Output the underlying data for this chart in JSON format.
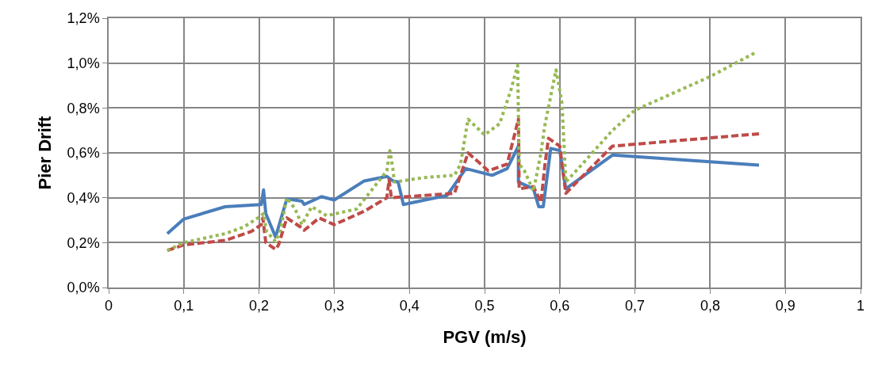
{
  "chart_data": {
    "type": "line",
    "xlabel": "PGV (m/s)",
    "ylabel": "Pier Drift",
    "xlim": [
      0,
      1
    ],
    "ylim": [
      0,
      1.2
    ],
    "xticks": [
      0,
      {
        "value": 0.1,
        "label": "0,1"
      },
      {
        "value": 0.2,
        "label": "0,2"
      },
      {
        "value": 0.3,
        "label": "0,3"
      },
      {
        "value": 0.4,
        "label": "0,4"
      },
      {
        "value": 0.5,
        "label": "0,5"
      },
      {
        "value": 0.6,
        "label": "0,6"
      },
      {
        "value": 0.7,
        "label": "0,7"
      },
      {
        "value": 0.8,
        "label": "0,8"
      },
      {
        "value": 0.9,
        "label": "0,9"
      },
      1
    ],
    "yticks": [
      {
        "value": 0,
        "label": "0,0%"
      },
      {
        "value": 0.2,
        "label": "0,2%"
      },
      {
        "value": 0.4,
        "label": "0,4%"
      },
      {
        "value": 0.6,
        "label": "0,6%"
      },
      {
        "value": 0.8,
        "label": "0,8%"
      },
      {
        "value": 1.0,
        "label": "1,0%"
      },
      {
        "value": 1.2,
        "label": "1,2%"
      }
    ],
    "grid": true,
    "marker": "none",
    "series": [
      {
        "color": "#4a7ebb",
        "line_style": "solid",
        "x": [
          0.078,
          0.1,
          0.155,
          0.203,
          0.206,
          0.209,
          0.222,
          0.237,
          0.257,
          0.26,
          0.283,
          0.3,
          0.34,
          0.37,
          0.378,
          0.385,
          0.392,
          0.45,
          0.475,
          0.51,
          0.53,
          0.545,
          0.545,
          0.565,
          0.572,
          0.578,
          0.588,
          0.6,
          0.608,
          0.67,
          0.865
        ],
        "values": [
          0.24,
          0.305,
          0.36,
          0.37,
          0.435,
          0.33,
          0.225,
          0.395,
          0.385,
          0.37,
          0.405,
          0.39,
          0.475,
          0.495,
          0.475,
          0.47,
          0.37,
          0.41,
          0.53,
          0.5,
          0.53,
          0.63,
          0.47,
          0.44,
          0.36,
          0.36,
          0.62,
          0.61,
          0.44,
          0.59,
          0.545
        ]
      },
      {
        "color": "#be4b48",
        "line_style": "dashed",
        "x": [
          0.078,
          0.1,
          0.155,
          0.19,
          0.203,
          0.205,
          0.209,
          0.222,
          0.226,
          0.237,
          0.255,
          0.26,
          0.28,
          0.3,
          0.34,
          0.37,
          0.373,
          0.376,
          0.42,
          0.46,
          0.478,
          0.505,
          0.53,
          0.545,
          0.546,
          0.565,
          0.575,
          0.58,
          0.585,
          0.6,
          0.608,
          0.67,
          0.865
        ],
        "values": [
          0.165,
          0.19,
          0.21,
          0.25,
          0.28,
          0.31,
          0.2,
          0.17,
          0.19,
          0.31,
          0.27,
          0.255,
          0.31,
          0.28,
          0.34,
          0.4,
          0.48,
          0.4,
          0.41,
          0.42,
          0.6,
          0.52,
          0.55,
          0.75,
          0.44,
          0.45,
          0.38,
          0.54,
          0.665,
          0.63,
          0.42,
          0.63,
          0.685
        ]
      },
      {
        "color": "#98b954",
        "line_style": "dotted",
        "x": [
          0.078,
          0.1,
          0.155,
          0.18,
          0.203,
          0.206,
          0.21,
          0.222,
          0.228,
          0.237,
          0.248,
          0.257,
          0.27,
          0.29,
          0.33,
          0.37,
          0.374,
          0.378,
          0.38,
          0.42,
          0.46,
          0.468,
          0.478,
          0.5,
          0.52,
          0.535,
          0.544,
          0.546,
          0.553,
          0.565,
          0.575,
          0.58,
          0.595,
          0.603,
          0.608,
          0.63,
          0.67,
          0.7,
          0.8,
          0.862
        ],
        "values": [
          0.165,
          0.2,
          0.24,
          0.27,
          0.32,
          0.33,
          0.25,
          0.205,
          0.25,
          0.4,
          0.35,
          0.28,
          0.36,
          0.32,
          0.35,
          0.52,
          0.61,
          0.53,
          0.47,
          0.49,
          0.5,
          0.55,
          0.75,
          0.68,
          0.73,
          0.88,
          0.99,
          0.55,
          0.52,
          0.43,
          0.6,
          0.72,
          0.97,
          0.82,
          0.47,
          0.55,
          0.7,
          0.79,
          0.94,
          1.05
        ]
      }
    ]
  }
}
